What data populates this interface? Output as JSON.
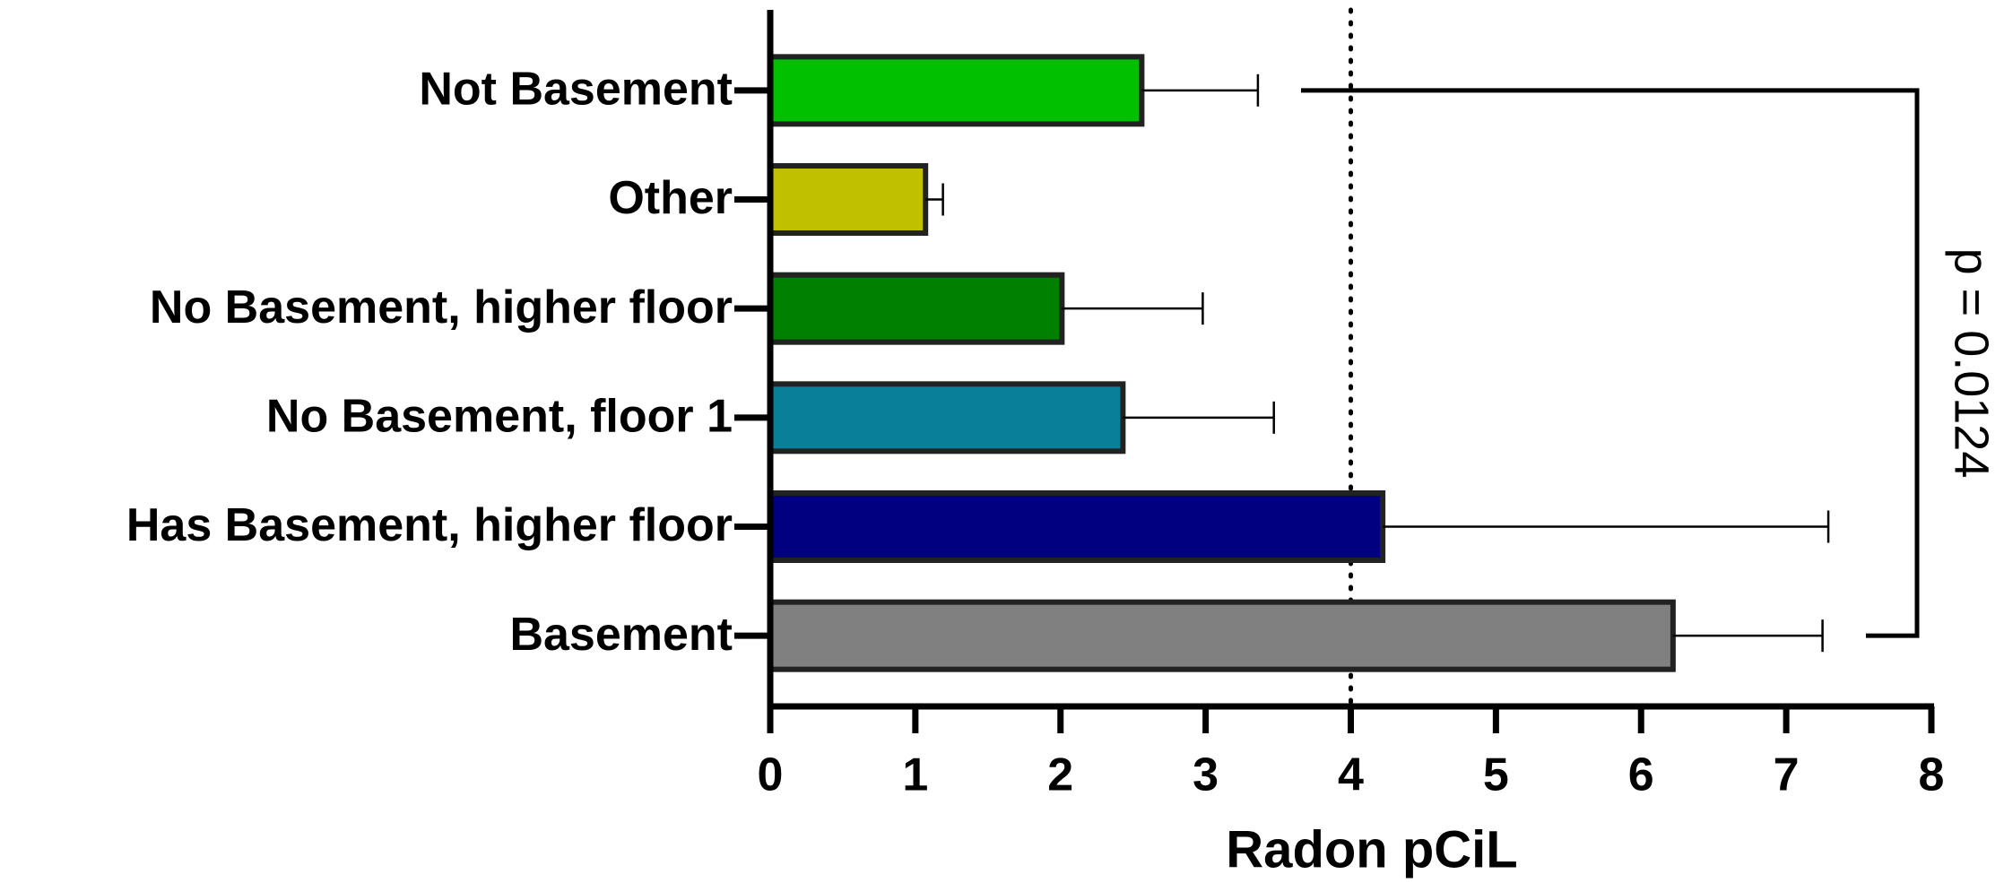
{
  "chart_data": {
    "type": "barh",
    "categories": [
      "Not Basement",
      "Other",
      "No Basement, higher floor",
      "No Basement, floor 1",
      "Has Basement, higher floor",
      "Basement"
    ],
    "values": [
      2.56,
      1.07,
      2.01,
      2.43,
      4.22,
      6.22
    ],
    "errors": [
      0.8,
      0.12,
      0.97,
      1.04,
      3.07,
      1.03
    ],
    "colors": [
      "#00c000",
      "#c0c000",
      "#008000",
      "#0a7f9a",
      "#000080",
      "#808080"
    ],
    "xlabel": "Radon pCiL",
    "xlim": [
      0,
      8
    ],
    "xticks": [
      0,
      1,
      2,
      3,
      4,
      5,
      6,
      7,
      8
    ],
    "reference_line": 4,
    "annotation": "p = 0.0124"
  }
}
